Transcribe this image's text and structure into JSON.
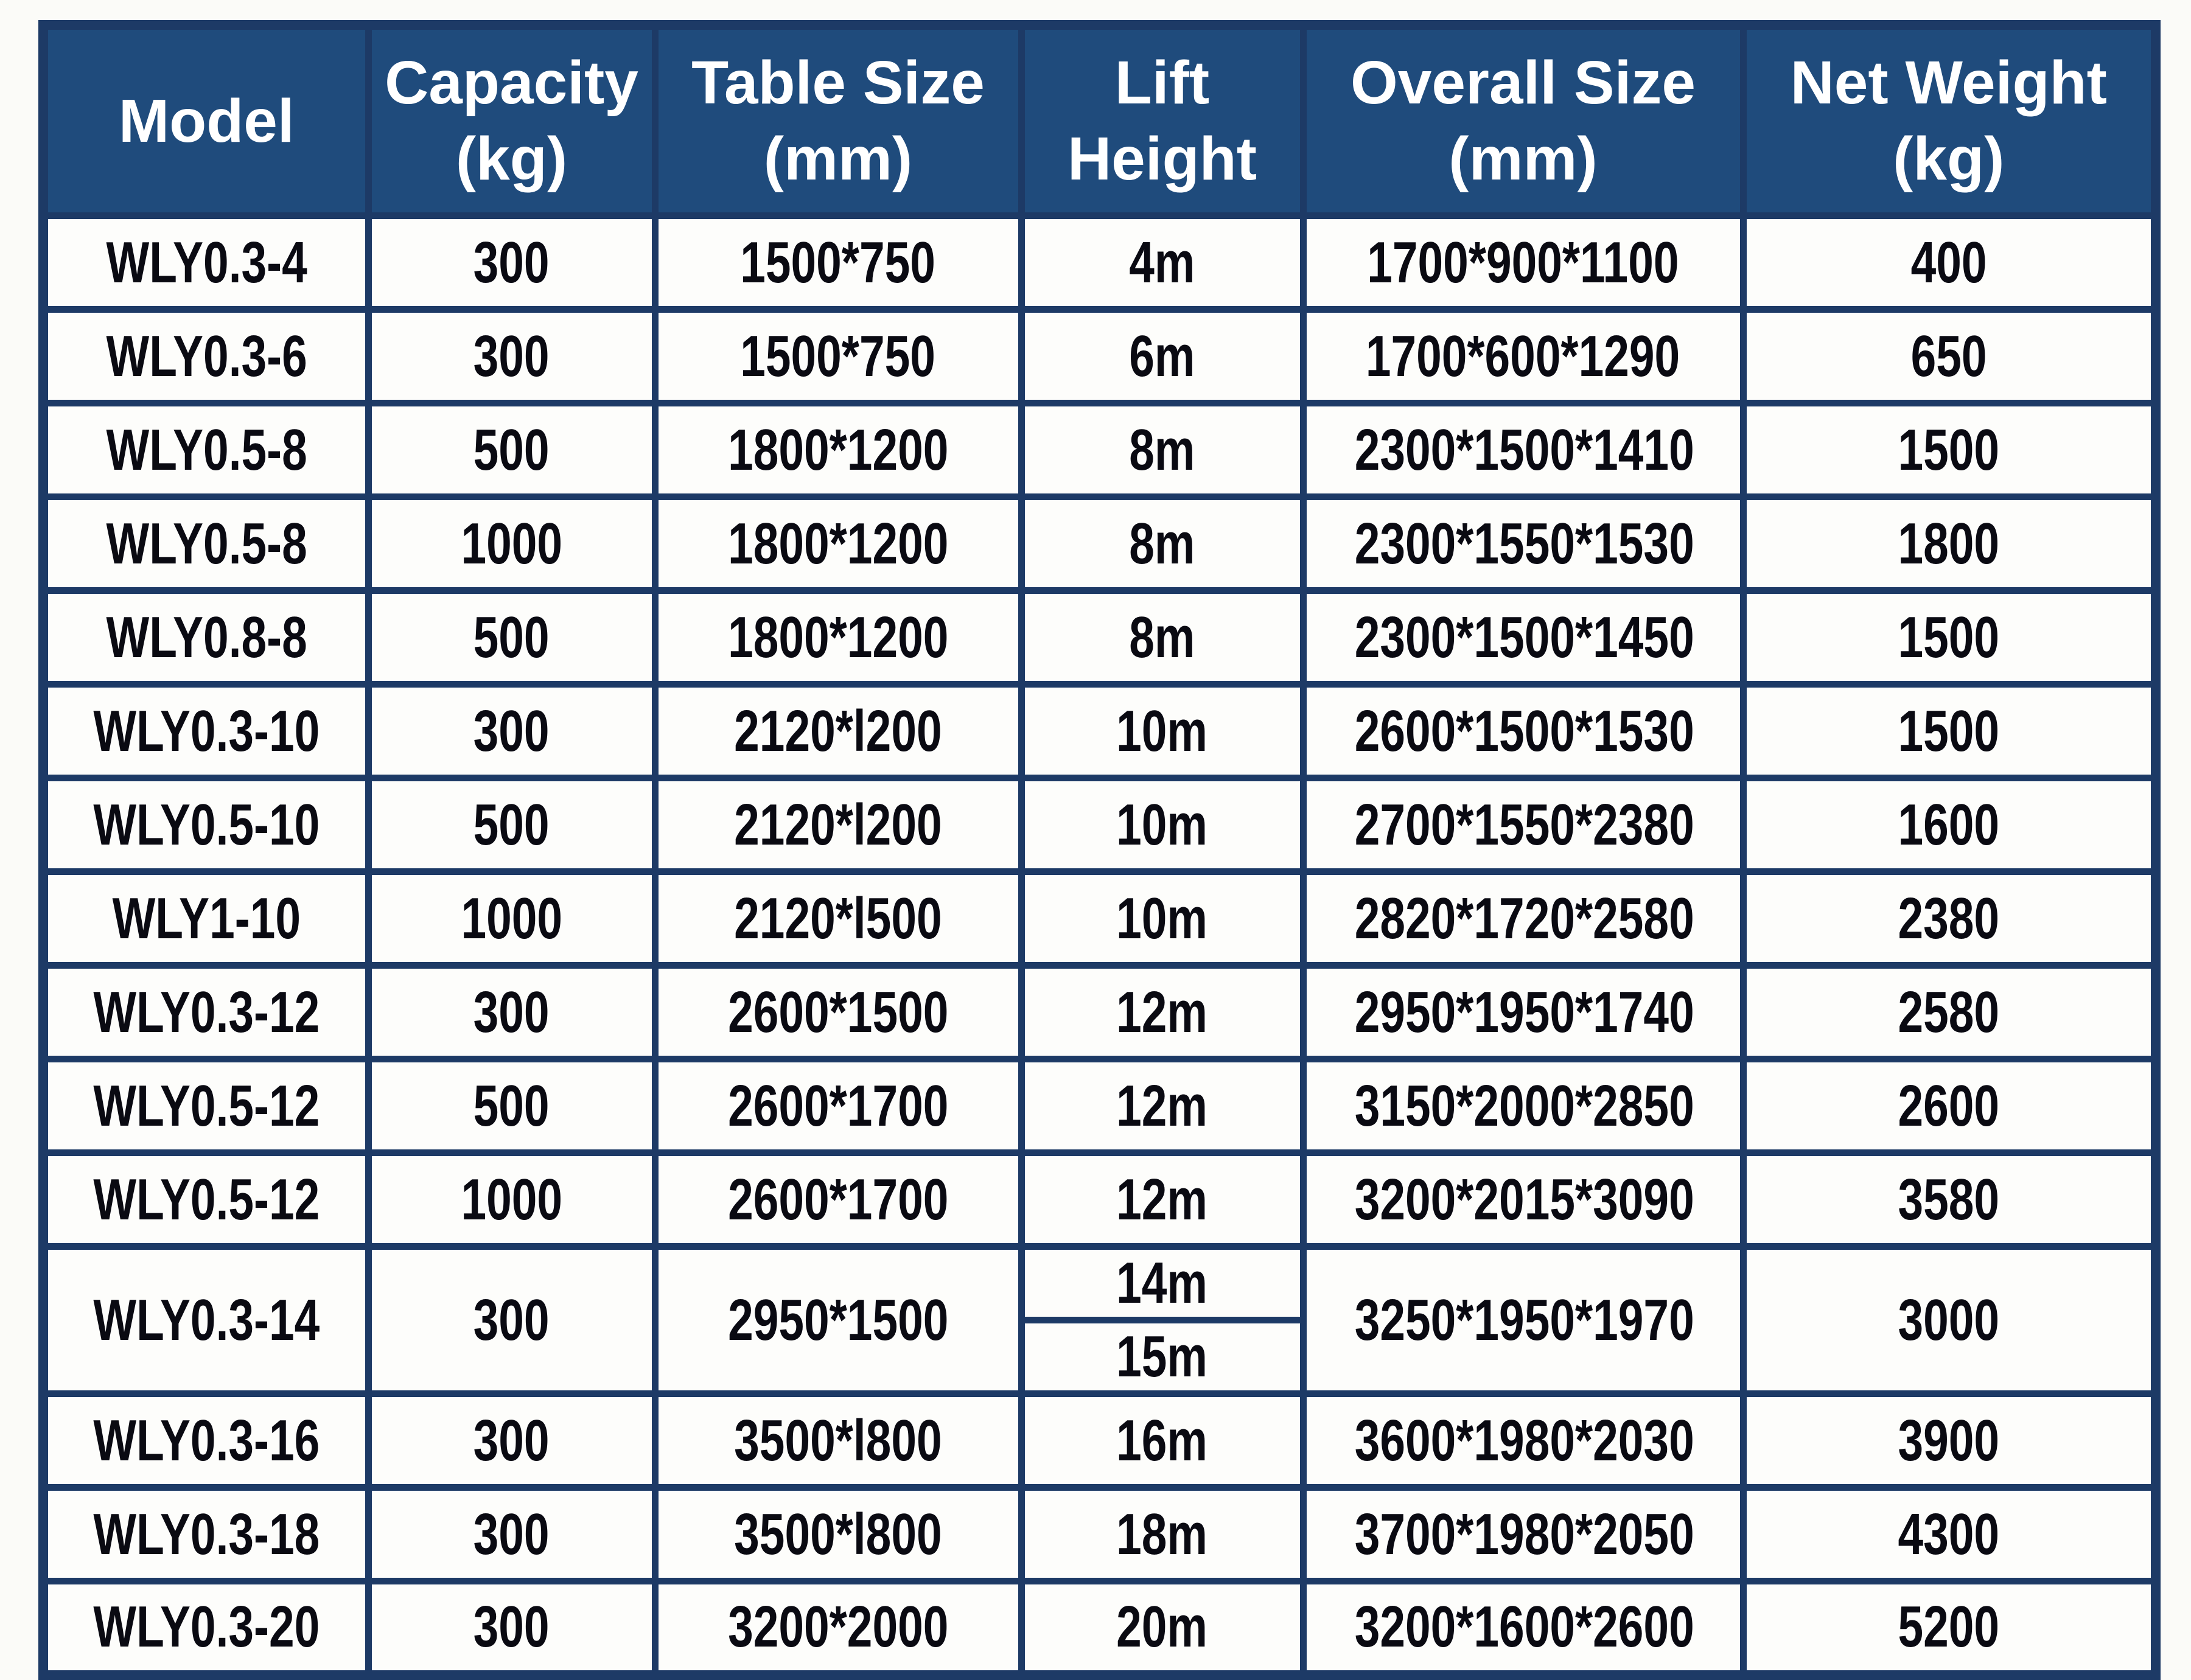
{
  "table": {
    "columns": [
      {
        "id": "model",
        "label": "Model"
      },
      {
        "id": "capacity",
        "label": "Capacity\n(kg)"
      },
      {
        "id": "table_size",
        "label": "Table Size\n(mm)"
      },
      {
        "id": "lift_height",
        "label": "Lift Height"
      },
      {
        "id": "overall_size",
        "label": "Overall Size\n(mm)"
      },
      {
        "id": "net_weight",
        "label": "Net Weight\n(kg)"
      }
    ],
    "rows": [
      {
        "model": "WLY0.3-4",
        "capacity": "300",
        "table_size": "1500*750",
        "lift_height": "4m",
        "overall_size": "1700*900*1100",
        "net_weight": "400"
      },
      {
        "model": "WLY0.3-6",
        "capacity": "300",
        "table_size": "1500*750",
        "lift_height": "6m",
        "overall_size": "1700*600*1290",
        "net_weight": "650"
      },
      {
        "model": "WLY0.5-8",
        "capacity": "500",
        "table_size": "1800*1200",
        "lift_height": "8m",
        "overall_size": "2300*1500*1410",
        "net_weight": "1500"
      },
      {
        "model": "WLY0.5-8",
        "capacity": "1000",
        "table_size": "1800*1200",
        "lift_height": "8m",
        "overall_size": "2300*1550*1530",
        "net_weight": "1800"
      },
      {
        "model": "WLY0.8-8",
        "capacity": "500",
        "table_size": "1800*1200",
        "lift_height": "8m",
        "overall_size": "2300*1500*1450",
        "net_weight": "1500"
      },
      {
        "model": "WLY0.3-10",
        "capacity": "300",
        "table_size": "2120*l200",
        "lift_height": "10m",
        "overall_size": "2600*1500*1530",
        "net_weight": "1500"
      },
      {
        "model": "WLY0.5-10",
        "capacity": "500",
        "table_size": "2120*l200",
        "lift_height": "10m",
        "overall_size": "2700*1550*2380",
        "net_weight": "1600"
      },
      {
        "model": "WLY1-10",
        "capacity": "1000",
        "table_size": "2120*l500",
        "lift_height": "10m",
        "overall_size": "2820*1720*2580",
        "net_weight": "2380"
      },
      {
        "model": "WLY0.3-12",
        "capacity": "300",
        "table_size": "2600*1500",
        "lift_height": "12m",
        "overall_size": "2950*1950*1740",
        "net_weight": "2580"
      },
      {
        "model": "WLY0.5-12",
        "capacity": "500",
        "table_size": "2600*1700",
        "lift_height": "12m",
        "overall_size": "3150*2000*2850",
        "net_weight": "2600"
      },
      {
        "model": "WLY0.5-12",
        "capacity": "1000",
        "table_size": "2600*1700",
        "lift_height": "12m",
        "overall_size": "3200*2015*3090",
        "net_weight": "3580"
      },
      {
        "model": "WLY0.3-14",
        "capacity": "300",
        "table_size": "2950*1500",
        "lift_height": [
          "14m",
          "15m"
        ],
        "overall_size": "3250*1950*1970",
        "net_weight": "3000"
      },
      {
        "model": "WLY0.3-16",
        "capacity": "300",
        "table_size": "3500*l800",
        "lift_height": "16m",
        "overall_size": "3600*1980*2030",
        "net_weight": "3900"
      },
      {
        "model": "WLY0.3-18",
        "capacity": "300",
        "table_size": "3500*l800",
        "lift_height": "18m",
        "overall_size": "3700*1980*2050",
        "net_weight": "4300"
      },
      {
        "model": "WLY0.3-20",
        "capacity": "300",
        "table_size": "3200*2000",
        "lift_height": "20m",
        "overall_size": "3200*1600*2600",
        "net_weight": "5200"
      }
    ],
    "colors": {
      "header_bg": "#1f4b7c",
      "header_text": "#ffffff",
      "grid": "#1d3a66",
      "row_bg": "#fdfdfb",
      "cell_text": "#0a0a12"
    }
  }
}
